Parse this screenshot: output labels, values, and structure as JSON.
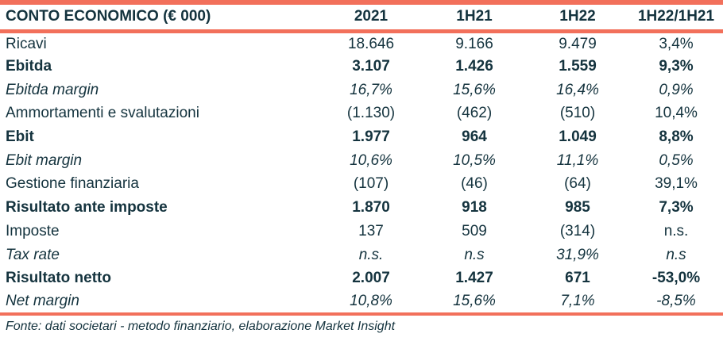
{
  "chart_data": {
    "type": "table",
    "title": "CONTO ECONOMICO (€ 000)",
    "columns": [
      "2021",
      "1H21",
      "1H22",
      "1H22/1H21"
    ],
    "rows": [
      {
        "label": "Ricavi",
        "style": "normal",
        "values": [
          "18.646",
          "9.166",
          "9.479",
          "3,4%"
        ]
      },
      {
        "label": "Ebitda",
        "style": "bold",
        "values": [
          "3.107",
          "1.426",
          "1.559",
          "9,3%"
        ]
      },
      {
        "label": "Ebitda margin",
        "style": "italic",
        "values": [
          "16,7%",
          "15,6%",
          "16,4%",
          "0,9%"
        ]
      },
      {
        "label": "Ammortamenti e svalutazioni",
        "style": "normal",
        "values": [
          "(1.130)",
          "(462)",
          "(510)",
          "10,4%"
        ]
      },
      {
        "label": "Ebit",
        "style": "bold",
        "values": [
          "1.977",
          "964",
          "1.049",
          "8,8%"
        ]
      },
      {
        "label": "Ebit margin",
        "style": "italic",
        "values": [
          "10,6%",
          "10,5%",
          "11,1%",
          "0,5%"
        ]
      },
      {
        "label": "Gestione finanziaria",
        "style": "normal",
        "values": [
          "(107)",
          "(46)",
          "(64)",
          "39,1%"
        ]
      },
      {
        "label": "Risultato ante imposte",
        "style": "bold",
        "values": [
          "1.870",
          "918",
          "985",
          "7,3%"
        ]
      },
      {
        "label": "Imposte",
        "style": "normal",
        "values": [
          "137",
          "509",
          "(314)",
          "n.s."
        ]
      },
      {
        "label": "Tax rate",
        "style": "italic",
        "values": [
          "n.s.",
          "n.s",
          "31,9%",
          "n.s"
        ]
      },
      {
        "label": "Risultato netto",
        "style": "bold",
        "values": [
          "2.007",
          "1.427",
          "671",
          "-53,0%"
        ]
      },
      {
        "label": "Net margin",
        "style": "italic",
        "values": [
          "10,8%",
          "15,6%",
          "7,1%",
          "-8,5%"
        ]
      }
    ],
    "footer": "Fonte: dati societari - metodo finanziario, elaborazione Market Insight",
    "layout_hints": {
      "value_alignment": "center",
      "grid": "off",
      "accent_rules": [
        "top",
        "below-header",
        "below-last-row"
      ]
    }
  },
  "colors": {
    "accent": "#F2705B",
    "text": "#14333E",
    "background": "#FFFFFF"
  }
}
